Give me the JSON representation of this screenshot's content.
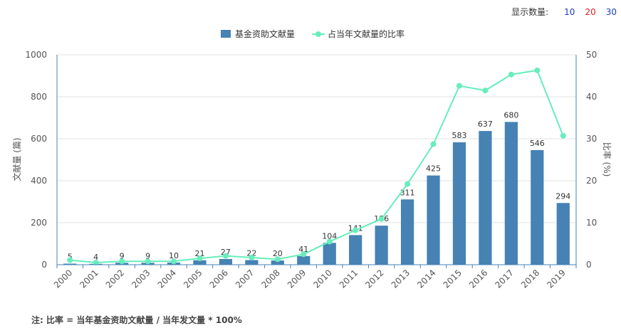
{
  "count_selector": {
    "label": "显示数量:",
    "options": [
      {
        "label": "10",
        "color": "#1a3cc8"
      },
      {
        "label": "20",
        "color": "#e02020"
      },
      {
        "label": "30",
        "color": "#1a3cc8"
      }
    ]
  },
  "footnote": "注: 比率 = 当年基金资助文献量 / 当年发文量 * 100%",
  "chart_data": {
    "type": "bar",
    "categories": [
      "2000",
      "2001",
      "2002",
      "2003",
      "2004",
      "2005",
      "2006",
      "2007",
      "2008",
      "2009",
      "2010",
      "2011",
      "2012",
      "2013",
      "2014",
      "2015",
      "2016",
      "2017",
      "2018",
      "2019"
    ],
    "series": [
      {
        "name": "基金资助文献量",
        "type": "bar",
        "axis": "left",
        "color": "#4682b4",
        "values": [
          5,
          4,
          9,
          9,
          10,
          21,
          27,
          22,
          20,
          41,
          104,
          141,
          186,
          311,
          425,
          583,
          637,
          680,
          546,
          294
        ]
      },
      {
        "name": "占当年文献量的比率",
        "type": "line",
        "axis": "right",
        "color": "#66eebb",
        "values": [
          1.1,
          0.5,
          0.8,
          0.8,
          0.8,
          1.5,
          2.1,
          1.7,
          1.3,
          2.5,
          5.5,
          8.2,
          10.9,
          19.2,
          28.7,
          42.6,
          41.5,
          45.3,
          46.3,
          30.7
        ]
      }
    ],
    "ylabel": "文献量 (篇)",
    "y2label": "比率 (%)",
    "ylim": [
      0,
      1000
    ],
    "y2lim": [
      0,
      50
    ],
    "yticks": [
      0,
      200,
      400,
      600,
      800,
      1000
    ],
    "y2ticks": [
      0,
      10,
      20,
      30,
      40,
      50
    ],
    "grid": true,
    "legend_position": "top-center"
  }
}
